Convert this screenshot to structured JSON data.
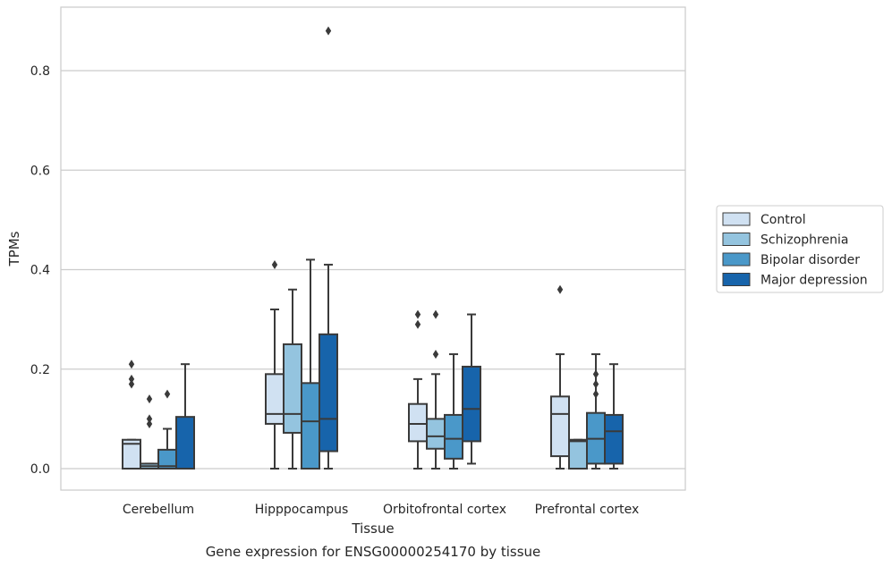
{
  "caption": "Gene expression for ENSG00000254170 by tissue",
  "chart_data": {
    "type": "box",
    "xlabel": "Tissue",
    "ylabel": "TPMs",
    "ylim": [
      -0.042,
      0.926
    ],
    "yticks": [
      "0.0",
      "0.2",
      "0.4",
      "0.6",
      "0.8"
    ],
    "ytick_values": [
      0.0,
      0.2,
      0.4,
      0.6,
      0.8
    ],
    "grid": "horizontal",
    "legend_position": "right",
    "categories": [
      "Cerebellum",
      "Hipppocampus",
      "Orbitofrontal cortex",
      "Prefrontal cortex"
    ],
    "series": [
      {
        "name": "Control",
        "color": "#d0e1f2",
        "boxes": [
          {
            "whislo": 0.0,
            "q1": 0.0,
            "med": 0.05,
            "q3": 0.058,
            "whishi": 0.058,
            "fliers": [
              0.21,
              0.18,
              0.17
            ]
          },
          {
            "whislo": 0.0,
            "q1": 0.09,
            "med": 0.11,
            "q3": 0.19,
            "whishi": 0.32,
            "fliers": [
              0.41
            ]
          },
          {
            "whislo": 0.0,
            "q1": 0.055,
            "med": 0.09,
            "q3": 0.13,
            "whishi": 0.18,
            "fliers": [
              0.31,
              0.29
            ]
          },
          {
            "whislo": 0.0,
            "q1": 0.025,
            "med": 0.11,
            "q3": 0.145,
            "whishi": 0.23,
            "fliers": [
              0.36
            ]
          }
        ]
      },
      {
        "name": "Schizophrenia",
        "color": "#94c4df",
        "boxes": [
          {
            "whislo": 0.0,
            "q1": 0.0,
            "med": 0.005,
            "q3": 0.01,
            "whishi": 0.01,
            "fliers": [
              0.14,
              0.1,
              0.09
            ]
          },
          {
            "whislo": 0.0,
            "q1": 0.072,
            "med": 0.11,
            "q3": 0.25,
            "whishi": 0.36,
            "fliers": []
          },
          {
            "whislo": 0.0,
            "q1": 0.04,
            "med": 0.065,
            "q3": 0.1,
            "whishi": 0.19,
            "fliers": [
              0.31,
              0.23
            ]
          },
          {
            "whislo": 0.0,
            "q1": 0.0,
            "med": 0.055,
            "q3": 0.058,
            "whishi": 0.058,
            "fliers": []
          }
        ]
      },
      {
        "name": "Bipolar disorder",
        "color": "#4a98c9",
        "boxes": [
          {
            "whislo": 0.0,
            "q1": 0.0,
            "med": 0.005,
            "q3": 0.038,
            "whishi": 0.08,
            "fliers": [
              0.15
            ]
          },
          {
            "whislo": 0.0,
            "q1": 0.0,
            "med": 0.095,
            "q3": 0.172,
            "whishi": 0.42,
            "fliers": []
          },
          {
            "whislo": 0.0,
            "q1": 0.02,
            "med": 0.06,
            "q3": 0.108,
            "whishi": 0.23,
            "fliers": []
          },
          {
            "whislo": 0.0,
            "q1": 0.01,
            "med": 0.06,
            "q3": 0.112,
            "whishi": 0.23,
            "fliers": [
              0.19,
              0.17,
              0.15
            ]
          }
        ]
      },
      {
        "name": "Major depression",
        "color": "#1764ab",
        "boxes": [
          {
            "whislo": 0.0,
            "q1": 0.0,
            "med": 0.0,
            "q3": 0.104,
            "whishi": 0.21,
            "fliers": []
          },
          {
            "whislo": 0.0,
            "q1": 0.035,
            "med": 0.1,
            "q3": 0.27,
            "whishi": 0.41,
            "fliers": [
              0.88
            ]
          },
          {
            "whislo": 0.01,
            "q1": 0.055,
            "med": 0.12,
            "q3": 0.205,
            "whishi": 0.31,
            "fliers": []
          },
          {
            "whislo": 0.0,
            "q1": 0.01,
            "med": 0.075,
            "q3": 0.108,
            "whishi": 0.21,
            "fliers": []
          }
        ]
      }
    ]
  }
}
